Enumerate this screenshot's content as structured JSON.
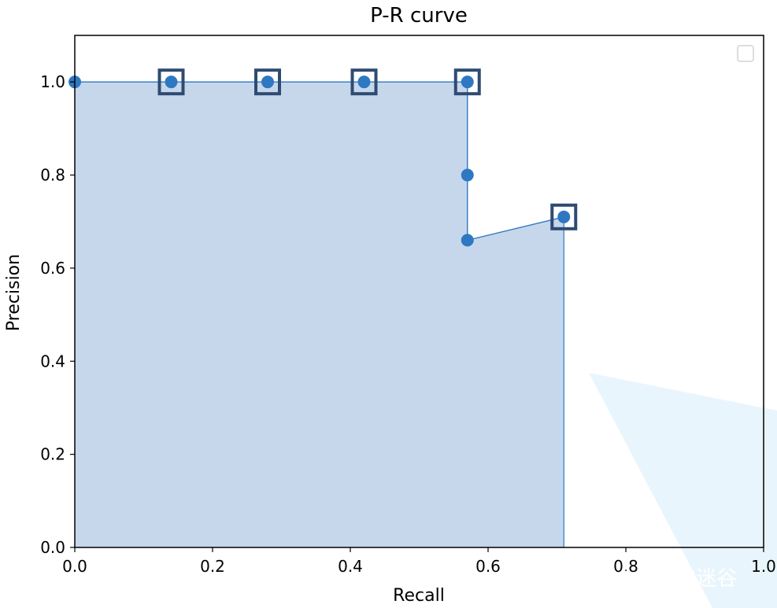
{
  "chart_data": {
    "type": "line",
    "title": "P-R curve",
    "xlabel": "Recall",
    "ylabel": "Precision",
    "xlim": [
      0.0,
      1.0
    ],
    "ylim": [
      0.0,
      1.1
    ],
    "xticks": [
      "0.0",
      "0.2",
      "0.4",
      "0.6",
      "0.8",
      "1.0"
    ],
    "yticks": [
      "0.0",
      "0.2",
      "0.4",
      "0.6",
      "0.8",
      "1.0"
    ],
    "grid": false,
    "legend": "top-right",
    "legend_entries": [],
    "series": [
      {
        "x": [
          0.0,
          0.14,
          0.28,
          0.42,
          0.57,
          0.57,
          0.57,
          0.71
        ],
        "y": [
          1.0,
          1.0,
          1.0,
          1.0,
          1.0,
          0.8,
          0.66,
          0.71
        ],
        "highlighted": [
          false,
          true,
          true,
          true,
          true,
          false,
          false,
          true
        ],
        "color": "#2e78c2"
      }
    ],
    "fill_color": "#c6d7ec",
    "highlight_color": "#2f4b72"
  },
  "watermark": "知乎 @记忆的迷谷"
}
